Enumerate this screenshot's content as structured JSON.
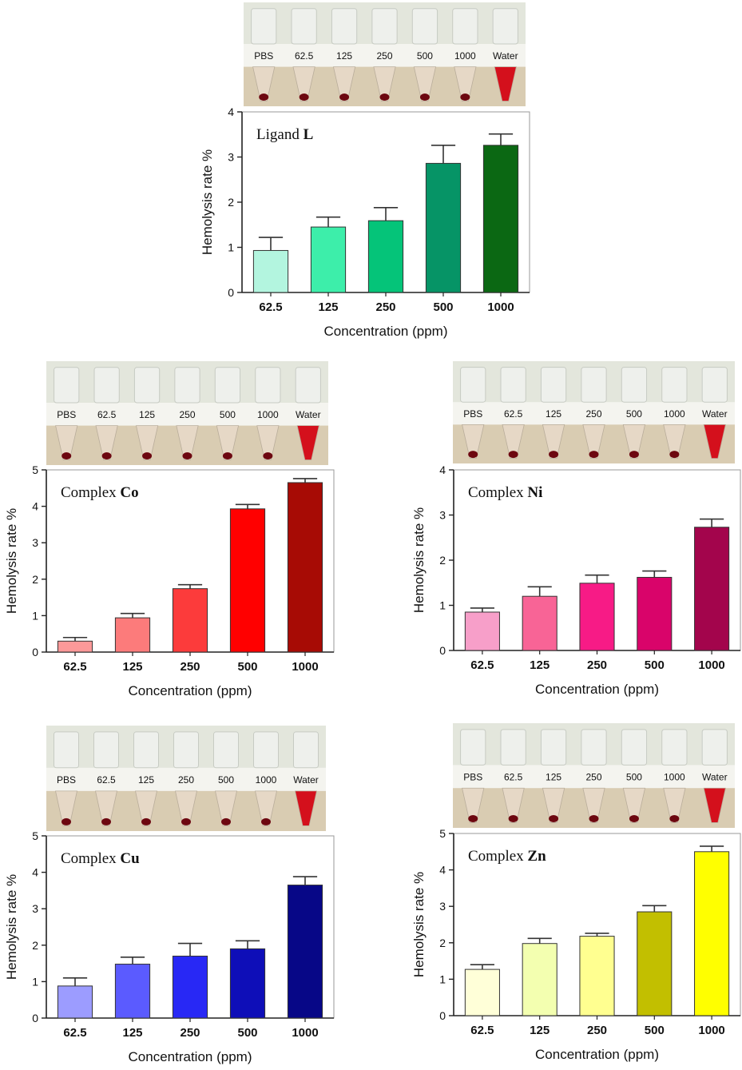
{
  "tube_labels": [
    "PBS",
    "62.5",
    "125",
    "250",
    "500",
    "1000",
    "Water"
  ],
  "chart_data": [
    {
      "type": "bar",
      "title_prefix": "Ligand",
      "title_bold": "L",
      "xlabel": "Concentration (ppm)",
      "ylabel": "Hemolysis rate %",
      "categories": [
        "62.5",
        "125",
        "250",
        "500",
        "1000"
      ],
      "values": [
        0.93,
        1.45,
        1.59,
        2.86,
        3.26
      ],
      "errors": [
        0.29,
        0.22,
        0.29,
        0.4,
        0.25
      ],
      "colors": [
        "#b3f5df",
        "#3deeaa",
        "#05c479",
        "#069466",
        "#0b6813"
      ],
      "ylim": [
        0,
        4
      ],
      "yticks": [
        "0",
        "1",
        "2",
        "3",
        "4"
      ]
    },
    {
      "type": "bar",
      "title_prefix": "Complex",
      "title_bold": "Co",
      "xlabel": "Concentration (ppm)",
      "ylabel": "Hemolysis rate %",
      "categories": [
        "62.5",
        "125",
        "250",
        "500",
        "1000"
      ],
      "values": [
        0.3,
        0.94,
        1.74,
        3.93,
        4.65
      ],
      "errors": [
        0.1,
        0.12,
        0.11,
        0.12,
        0.11
      ],
      "colors": [
        "#fc9999",
        "#fc7b7b",
        "#fc3b3b",
        "#ff0000",
        "#a70b05"
      ],
      "ylim": [
        0,
        5
      ],
      "yticks": [
        "0",
        "1",
        "2",
        "3",
        "4",
        "5"
      ]
    },
    {
      "type": "bar",
      "title_prefix": "Complex",
      "title_bold": "Ni",
      "xlabel": "Concentration (ppm)",
      "ylabel": "Hemolysis rate %",
      "categories": [
        "62.5",
        "125",
        "250",
        "500",
        "1000"
      ],
      "values": [
        0.85,
        1.2,
        1.49,
        1.62,
        2.73
      ],
      "errors": [
        0.09,
        0.21,
        0.18,
        0.14,
        0.18
      ],
      "colors": [
        "#f79fc9",
        "#f86496",
        "#f71b86",
        "#d9046a",
        "#a3054c"
      ],
      "ylim": [
        0,
        4
      ],
      "yticks": [
        "0",
        "1",
        "2",
        "3",
        "4"
      ]
    },
    {
      "type": "bar",
      "title_prefix": "Complex",
      "title_bold": "Cu",
      "xlabel": "Concentration (ppm)",
      "ylabel": "Hemolysis rate %",
      "categories": [
        "62.5",
        "125",
        "250",
        "500",
        "1000"
      ],
      "values": [
        0.88,
        1.48,
        1.7,
        1.9,
        3.65
      ],
      "errors": [
        0.22,
        0.19,
        0.35,
        0.22,
        0.23
      ],
      "colors": [
        "#9c9cff",
        "#5b5bff",
        "#2828f5",
        "#0e0eb8",
        "#070787"
      ],
      "ylim": [
        0,
        5
      ],
      "yticks": [
        "0",
        "1",
        "2",
        "3",
        "4",
        "5"
      ]
    },
    {
      "type": "bar",
      "title_prefix": "Complex",
      "title_bold": "Zn",
      "xlabel": "Concentration (ppm)",
      "ylabel": "Hemolysis rate %",
      "categories": [
        "62.5",
        "125",
        "250",
        "500",
        "1000"
      ],
      "values": [
        1.27,
        1.98,
        2.18,
        2.85,
        4.5
      ],
      "errors": [
        0.13,
        0.14,
        0.08,
        0.17,
        0.15
      ],
      "colors": [
        "#ffffd8",
        "#f3ffb0",
        "#ffff90",
        "#c2bf00",
        "#ffff00"
      ],
      "ylim": [
        0,
        5
      ],
      "yticks": [
        "0",
        "1",
        "2",
        "3",
        "4",
        "5"
      ]
    }
  ]
}
